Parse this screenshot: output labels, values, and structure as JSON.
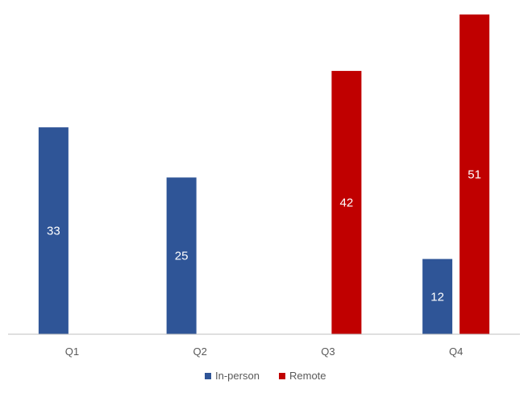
{
  "chart_data": {
    "type": "bar",
    "categories": [
      "Q1",
      "Q2",
      "Q3",
      "Q4"
    ],
    "series": [
      {
        "name": "In-person",
        "color": "#2f5597",
        "values": [
          33,
          25,
          0,
          12
        ],
        "labels": [
          "33",
          "25",
          "",
          "12"
        ]
      },
      {
        "name": "Remote",
        "color": "#c00000",
        "values": [
          0,
          0,
          42,
          51
        ],
        "labels": [
          "",
          "",
          "42",
          "51"
        ]
      }
    ],
    "ylim": [
      0,
      51
    ],
    "grid": false,
    "axis_line_color": "#bfbfbf",
    "legend_position": "bottom",
    "title": "",
    "xlabel": "",
    "ylabel": ""
  }
}
